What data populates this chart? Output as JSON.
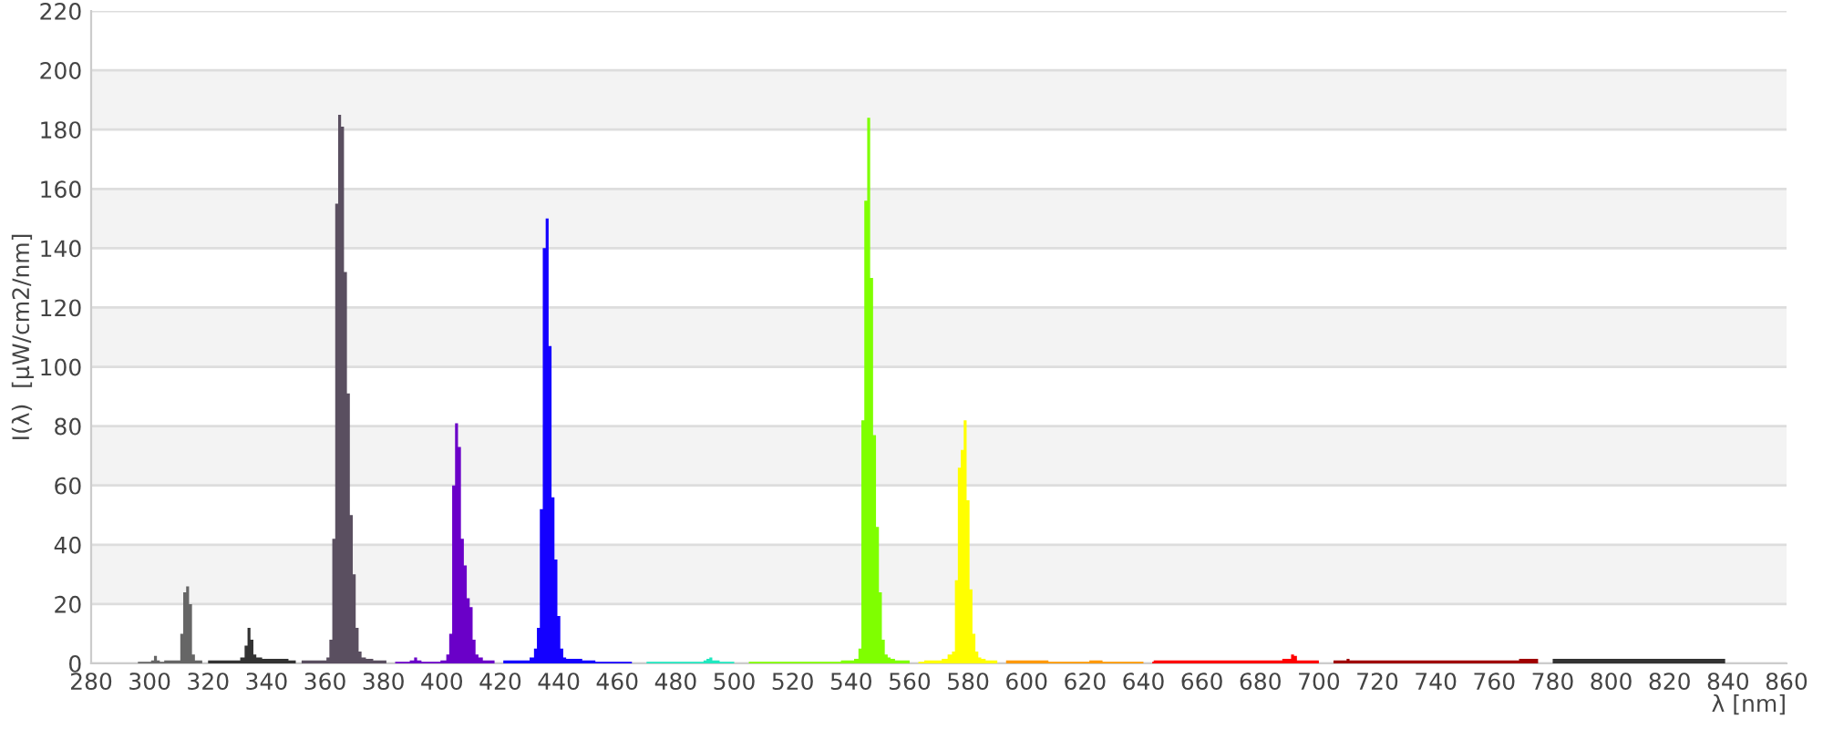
{
  "chart_data": {
    "type": "area",
    "xlabel": "λ [nm]",
    "ylabel": "I(λ)  [µW/cm2/nm]",
    "xlim": [
      280,
      860
    ],
    "xticks": [
      280,
      300,
      320,
      340,
      360,
      380,
      400,
      420,
      440,
      460,
      480,
      500,
      520,
      540,
      560,
      580,
      600,
      620,
      640,
      660,
      680,
      700,
      720,
      740,
      760,
      780,
      800,
      820,
      840,
      860
    ],
    "ylim": [
      0,
      220
    ],
    "yticks": [
      0,
      20,
      40,
      60,
      80,
      100,
      120,
      140,
      160,
      180,
      200,
      220
    ],
    "grid": "y",
    "series": [
      {
        "color": "#666666",
        "x": [
          296,
          298,
          300,
          301,
          302,
          303,
          304,
          306,
          308,
          310,
          311,
          312,
          313,
          314,
          315,
          316,
          318
        ],
        "values": [
          0.5,
          0.5,
          0.5,
          1,
          2.5,
          1,
          0.5,
          1,
          1,
          1,
          10,
          24,
          26,
          20,
          3,
          1,
          1
        ]
      },
      {
        "color": "#333333",
        "x": [
          320,
          325,
          330,
          332,
          333,
          334,
          335,
          336,
          337,
          340,
          345,
          350
        ],
        "values": [
          1,
          1,
          1,
          2,
          6,
          12,
          8,
          3,
          2,
          1.5,
          1.5,
          1
        ]
      },
      {
        "color": "#5a4f60",
        "x": [
          352,
          356,
          360,
          361,
          362,
          363,
          364,
          365,
          366,
          367,
          368,
          369,
          370,
          371,
          372,
          373,
          375,
          378,
          381
        ],
        "values": [
          1,
          1,
          1,
          2,
          8,
          42,
          155,
          185,
          181,
          132,
          91,
          50,
          30,
          12,
          4,
          2,
          1.5,
          1,
          1
        ]
      },
      {
        "color": "#6a00c8",
        "x": [
          384,
          388,
          390,
          391,
          392,
          394,
          398,
          401,
          402,
          403,
          404,
          405,
          406,
          407,
          408,
          409,
          410,
          411,
          412,
          413,
          415,
          418
        ],
        "values": [
          0.5,
          0.5,
          1,
          2,
          1,
          0.5,
          0.5,
          1,
          3,
          10,
          60,
          81,
          73,
          42,
          33,
          22,
          19,
          8,
          3,
          2,
          1,
          1
        ]
      },
      {
        "color": "#1400ff",
        "x": [
          421,
          425,
          429,
          431,
          432,
          433,
          434,
          435,
          436,
          437,
          438,
          439,
          440,
          441,
          442,
          443,
          446,
          450,
          455,
          460,
          465
        ],
        "values": [
          1,
          1,
          1,
          2,
          5,
          12,
          52,
          140,
          150,
          107,
          56,
          35,
          16,
          5,
          2,
          1.5,
          1.5,
          1,
          0.5,
          0.5,
          0.5
        ]
      },
      {
        "color": "#20e8c0",
        "x": [
          470,
          475,
          480,
          485,
          489,
          490,
          491,
          492,
          493,
          494,
          496,
          500
        ],
        "values": [
          0.5,
          0.5,
          0.5,
          0.5,
          0.5,
          1,
          1.5,
          2,
          1,
          1,
          0.5,
          0.5
        ]
      },
      {
        "color": "#7fff00",
        "x": [
          505,
          510,
          515,
          520,
          525,
          530,
          535,
          538,
          540,
          542,
          543,
          544,
          545,
          546,
          547,
          548,
          549,
          550,
          551,
          552,
          553,
          554,
          556,
          560
        ],
        "values": [
          0.5,
          0.5,
          0.5,
          0.5,
          0.5,
          0.5,
          0.5,
          1,
          1,
          1.5,
          5,
          82,
          156,
          184,
          130,
          77,
          46,
          24,
          8,
          3,
          2,
          1.5,
          1,
          1
        ]
      },
      {
        "color": "#ffff00",
        "x": [
          563,
          567,
          570,
          572,
          574,
          575,
          576,
          577,
          578,
          579,
          580,
          581,
          582,
          583,
          584,
          585,
          587,
          590
        ],
        "values": [
          0.5,
          1,
          1,
          1.5,
          3,
          4,
          28,
          66,
          72,
          82,
          55,
          25,
          10,
          4,
          2,
          1.5,
          1,
          1
        ]
      },
      {
        "color": "#ff9900",
        "x": [
          593,
          597,
          600,
          605,
          610,
          615,
          620,
          623,
          625,
          627,
          630,
          635,
          640
        ],
        "values": [
          1,
          1,
          1,
          1,
          0.5,
          0.5,
          0.5,
          1,
          1,
          0.5,
          0.5,
          0.5,
          0.5
        ]
      },
      {
        "color": "#ff0000",
        "x": [
          643,
          644,
          645,
          650,
          655,
          660,
          665,
          670,
          675,
          680,
          685,
          690,
          691,
          692,
          693,
          695,
          700
        ],
        "values": [
          0.5,
          1,
          1,
          1,
          1,
          1,
          1,
          1,
          1,
          1,
          1,
          1.5,
          3,
          2.5,
          1,
          1,
          1
        ]
      },
      {
        "color": "#a00000",
        "x": [
          705,
          709,
          710,
          711,
          715,
          720,
          725,
          730,
          735,
          740,
          745,
          750,
          755,
          760,
          765,
          768,
          769,
          770,
          775
        ],
        "values": [
          1,
          1,
          1.5,
          1,
          1,
          1,
          1,
          1,
          1,
          1,
          1,
          1,
          1,
          1,
          1,
          1,
          1.5,
          1.5,
          1.5
        ]
      },
      {
        "color": "#333333",
        "x": [
          780,
          790,
          800,
          810,
          820,
          830,
          839
        ],
        "values": [
          1.5,
          1.5,
          1.5,
          1.5,
          1.5,
          1.5,
          1.5
        ]
      }
    ]
  }
}
